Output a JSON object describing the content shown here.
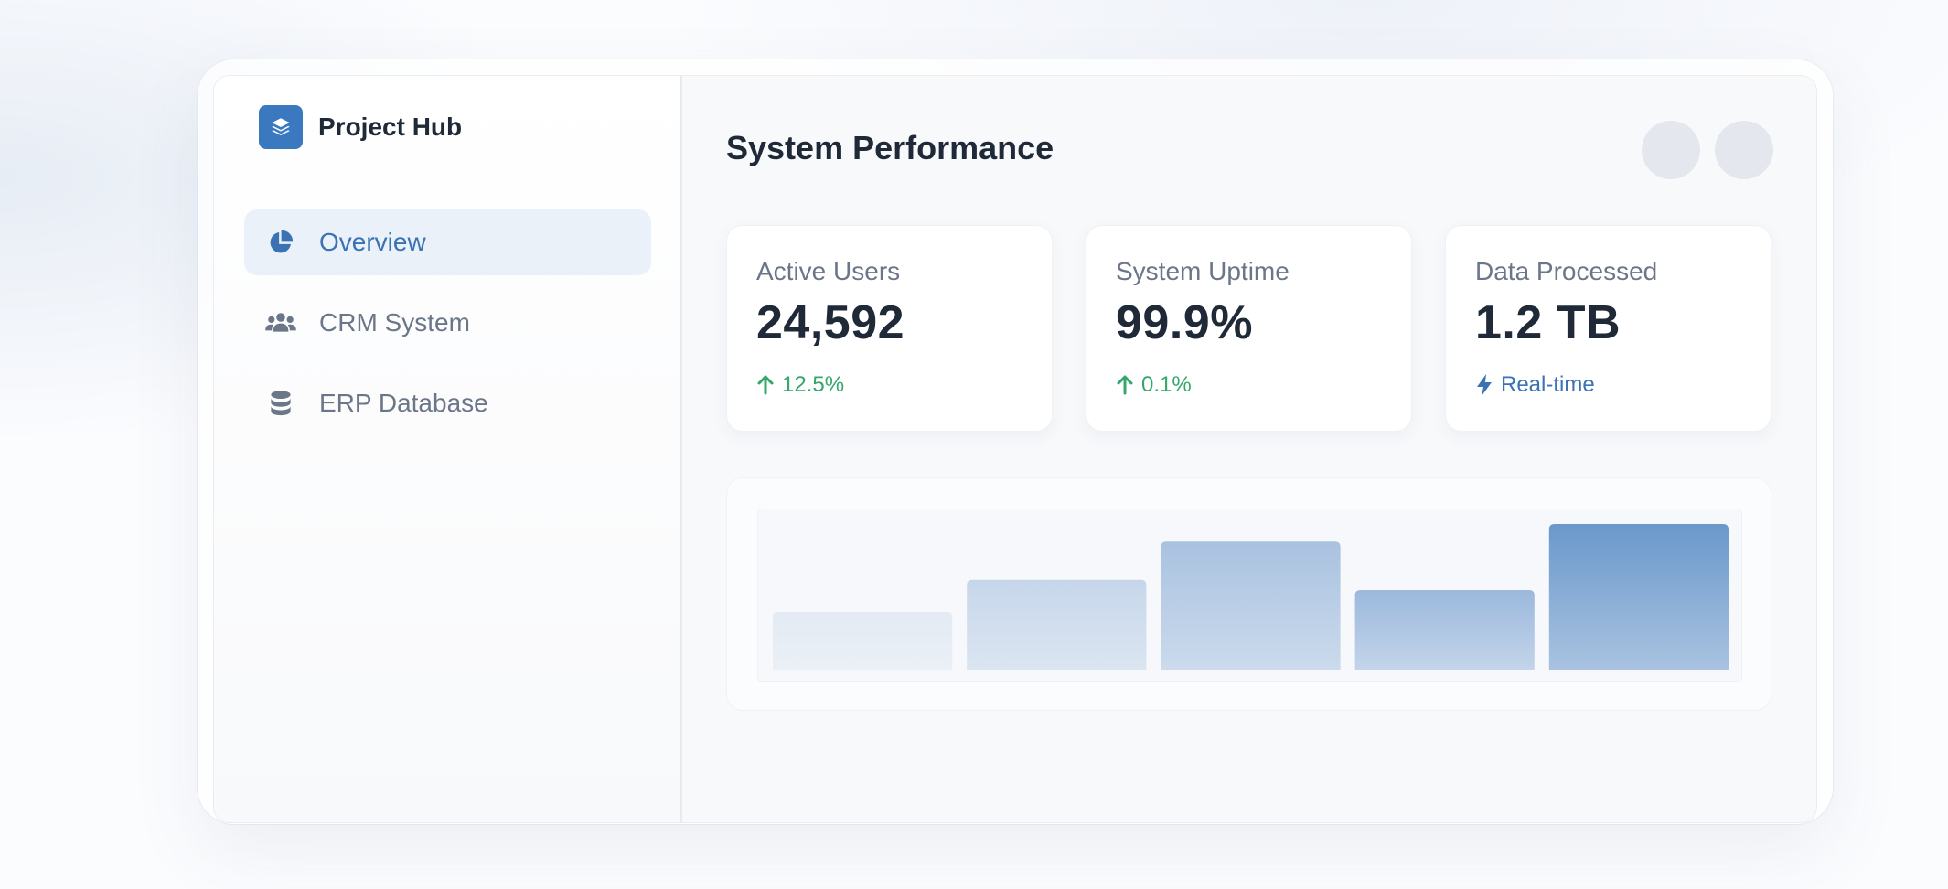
{
  "brand": {
    "name": "Project Hub",
    "logo_icon": "layers-icon",
    "accent": "#3a78c0"
  },
  "sidebar": {
    "items": [
      {
        "label": "Overview",
        "icon": "pie-chart-icon",
        "active": true
      },
      {
        "label": "CRM System",
        "icon": "users-icon",
        "active": false
      },
      {
        "label": "ERP Database",
        "icon": "database-icon",
        "active": false
      }
    ]
  },
  "header": {
    "title": "System Performance"
  },
  "stats": [
    {
      "label": "Active Users",
      "value": "24,592",
      "trend": "12.5%",
      "trend_icon": "arrow-up-icon",
      "trend_color": "#34a86b"
    },
    {
      "label": "System Uptime",
      "value": "99.9%",
      "trend": "0.1%",
      "trend_icon": "arrow-up-icon",
      "trend_color": "#34a86b"
    },
    {
      "label": "Data Processed",
      "value": "1.2 TB",
      "trend": "Real-time",
      "trend_icon": "bolt-icon",
      "trend_color": "#3a72b4"
    }
  ],
  "chart_data": {
    "type": "bar",
    "values": [
      40,
      62,
      88,
      55,
      100
    ],
    "ylim": [
      0,
      100
    ],
    "grid": false,
    "colors": [
      "#e3eaf3",
      "#c6d6ea",
      "#a9c2e0",
      "#9bb8dc",
      "#6a98cb"
    ]
  }
}
